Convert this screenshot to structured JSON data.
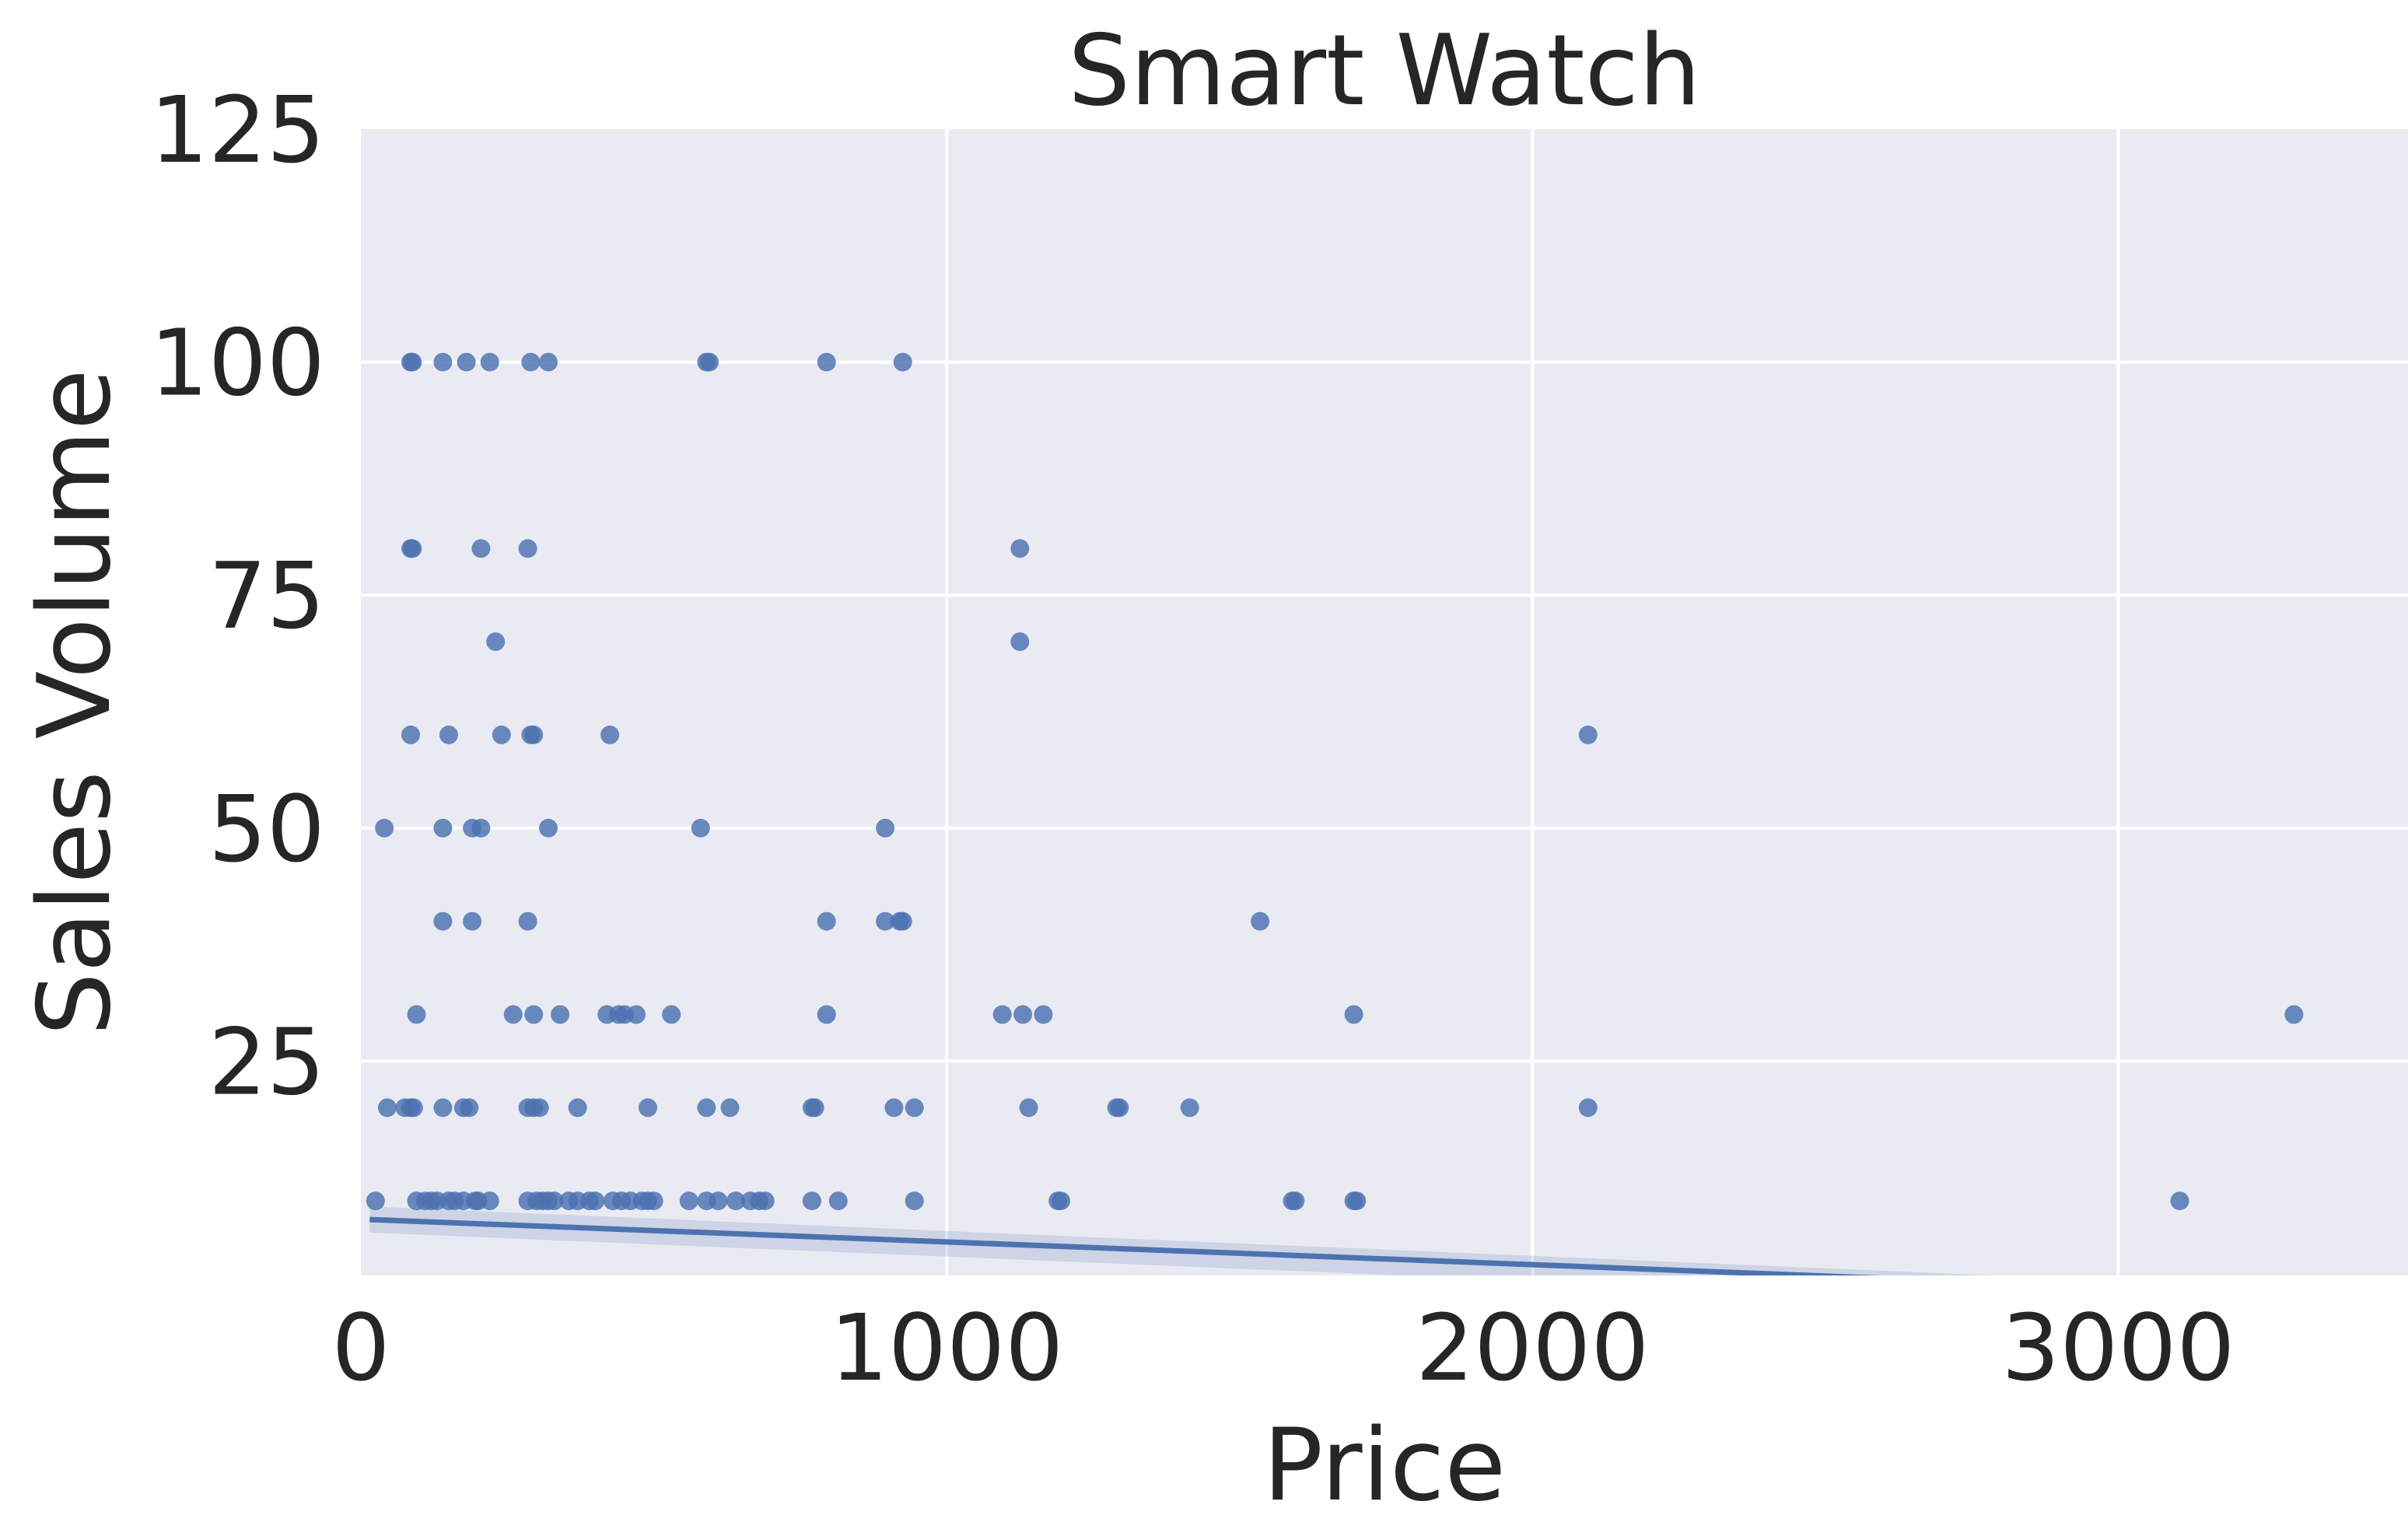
{
  "chart_data": {
    "type": "scatter",
    "title": "Smart Watch",
    "xlabel": "Price",
    "ylabel": "Sales Volume",
    "xlim": [
      0,
      3500
    ],
    "ylim": [
      2,
      125
    ],
    "x_ticks": [
      "0",
      "1000",
      "2000",
      "3000"
    ],
    "y_ticks": [
      "25",
      "50",
      "75",
      "100",
      "125"
    ],
    "grid": true,
    "colors": {
      "background": "#eaeaf2",
      "grid": "#ffffff",
      "points": "#4c72b0",
      "text": "#262626"
    },
    "regression_line": {
      "x": [
        15,
        3500
      ],
      "y": [
        8.0,
        -0.5
      ],
      "ci_band": true
    },
    "points": [
      [
        85,
        100
      ],
      [
        88,
        100
      ],
      [
        140,
        100
      ],
      [
        180,
        100
      ],
      [
        220,
        100
      ],
      [
        290,
        100
      ],
      [
        320,
        100
      ],
      [
        590,
        100
      ],
      [
        595,
        100
      ],
      [
        795,
        100
      ],
      [
        925,
        100
      ],
      [
        85,
        80
      ],
      [
        88,
        80
      ],
      [
        205,
        80
      ],
      [
        285,
        80
      ],
      [
        1125,
        80
      ],
      [
        230,
        70
      ],
      [
        1125,
        70
      ],
      [
        85,
        60
      ],
      [
        150,
        60
      ],
      [
        240,
        60
      ],
      [
        290,
        60
      ],
      [
        295,
        60
      ],
      [
        425,
        60
      ],
      [
        2095,
        60
      ],
      [
        40,
        50
      ],
      [
        140,
        50
      ],
      [
        190,
        50
      ],
      [
        205,
        50
      ],
      [
        320,
        50
      ],
      [
        580,
        50
      ],
      [
        895,
        50
      ],
      [
        140,
        40
      ],
      [
        190,
        40
      ],
      [
        285,
        40
      ],
      [
        795,
        40
      ],
      [
        895,
        40
      ],
      [
        920,
        40
      ],
      [
        925,
        40
      ],
      [
        1535,
        40
      ],
      [
        95,
        30
      ],
      [
        260,
        30
      ],
      [
        295,
        30
      ],
      [
        340,
        30
      ],
      [
        420,
        30
      ],
      [
        440,
        30
      ],
      [
        450,
        30
      ],
      [
        470,
        30
      ],
      [
        530,
        30
      ],
      [
        795,
        30
      ],
      [
        1095,
        30
      ],
      [
        1130,
        30
      ],
      [
        1165,
        30
      ],
      [
        1695,
        30
      ],
      [
        3300,
        30
      ],
      [
        45,
        20
      ],
      [
        75,
        20
      ],
      [
        85,
        20
      ],
      [
        90,
        20
      ],
      [
        140,
        20
      ],
      [
        175,
        20
      ],
      [
        185,
        20
      ],
      [
        285,
        20
      ],
      [
        295,
        20
      ],
      [
        305,
        20
      ],
      [
        370,
        20
      ],
      [
        490,
        20
      ],
      [
        590,
        20
      ],
      [
        630,
        20
      ],
      [
        770,
        20
      ],
      [
        775,
        20
      ],
      [
        910,
        20
      ],
      [
        945,
        20
      ],
      [
        1140,
        20
      ],
      [
        1290,
        20
      ],
      [
        1295,
        20
      ],
      [
        1415,
        20
      ],
      [
        2095,
        20
      ],
      [
        25,
        10
      ],
      [
        95,
        10
      ],
      [
        110,
        10
      ],
      [
        120,
        10
      ],
      [
        130,
        10
      ],
      [
        150,
        10
      ],
      [
        160,
        10
      ],
      [
        175,
        10
      ],
      [
        195,
        10
      ],
      [
        200,
        10
      ],
      [
        220,
        10
      ],
      [
        285,
        10
      ],
      [
        300,
        10
      ],
      [
        310,
        10
      ],
      [
        320,
        10
      ],
      [
        330,
        10
      ],
      [
        355,
        10
      ],
      [
        370,
        10
      ],
      [
        390,
        10
      ],
      [
        400,
        10
      ],
      [
        430,
        10
      ],
      [
        445,
        10
      ],
      [
        460,
        10
      ],
      [
        480,
        10
      ],
      [
        490,
        10
      ],
      [
        500,
        10
      ],
      [
        560,
        10
      ],
      [
        590,
        10
      ],
      [
        610,
        10
      ],
      [
        640,
        10
      ],
      [
        665,
        10
      ],
      [
        680,
        10
      ],
      [
        690,
        10
      ],
      [
        770,
        10
      ],
      [
        815,
        10
      ],
      [
        945,
        10
      ],
      [
        1190,
        10
      ],
      [
        1195,
        10
      ],
      [
        1590,
        10
      ],
      [
        1595,
        10
      ],
      [
        1695,
        10
      ],
      [
        1700,
        10
      ],
      [
        3105,
        10
      ]
    ]
  }
}
